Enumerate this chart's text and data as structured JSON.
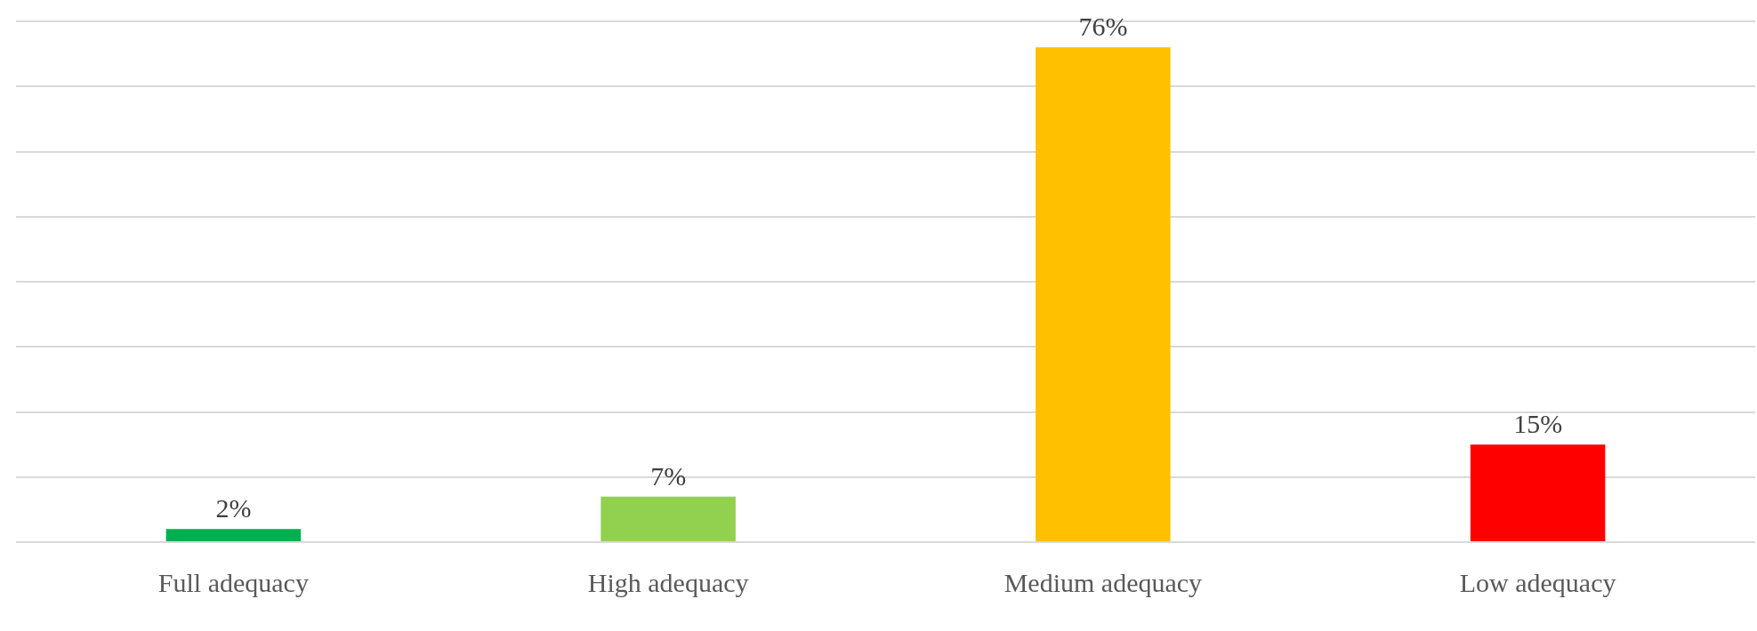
{
  "chart_data": {
    "type": "bar",
    "categories": [
      "Full adequacy",
      "High adequacy",
      "Medium adequacy",
      "Low adequacy"
    ],
    "values": [
      2,
      7,
      76,
      15
    ],
    "colors": [
      "#00b050",
      "#92d050",
      "#ffc000",
      "#ff0000"
    ],
    "value_labels": [
      "2%",
      "7%",
      "76%",
      "15%"
    ],
    "ylim": [
      0,
      80
    ],
    "yticks": [
      {
        "value": 0,
        "label": null
      },
      {
        "value": 10,
        "label": null
      },
      {
        "value": 20,
        "label": null
      },
      {
        "value": 30,
        "label": null
      },
      {
        "value": 40,
        "label": null
      },
      {
        "value": 50,
        "label": null
      },
      {
        "value": 60,
        "label": null
      },
      {
        "value": 70,
        "label": null
      },
      {
        "value": 80,
        "label": null
      }
    ],
    "tick_labels": "x",
    "grid": "y",
    "legend": false
  }
}
